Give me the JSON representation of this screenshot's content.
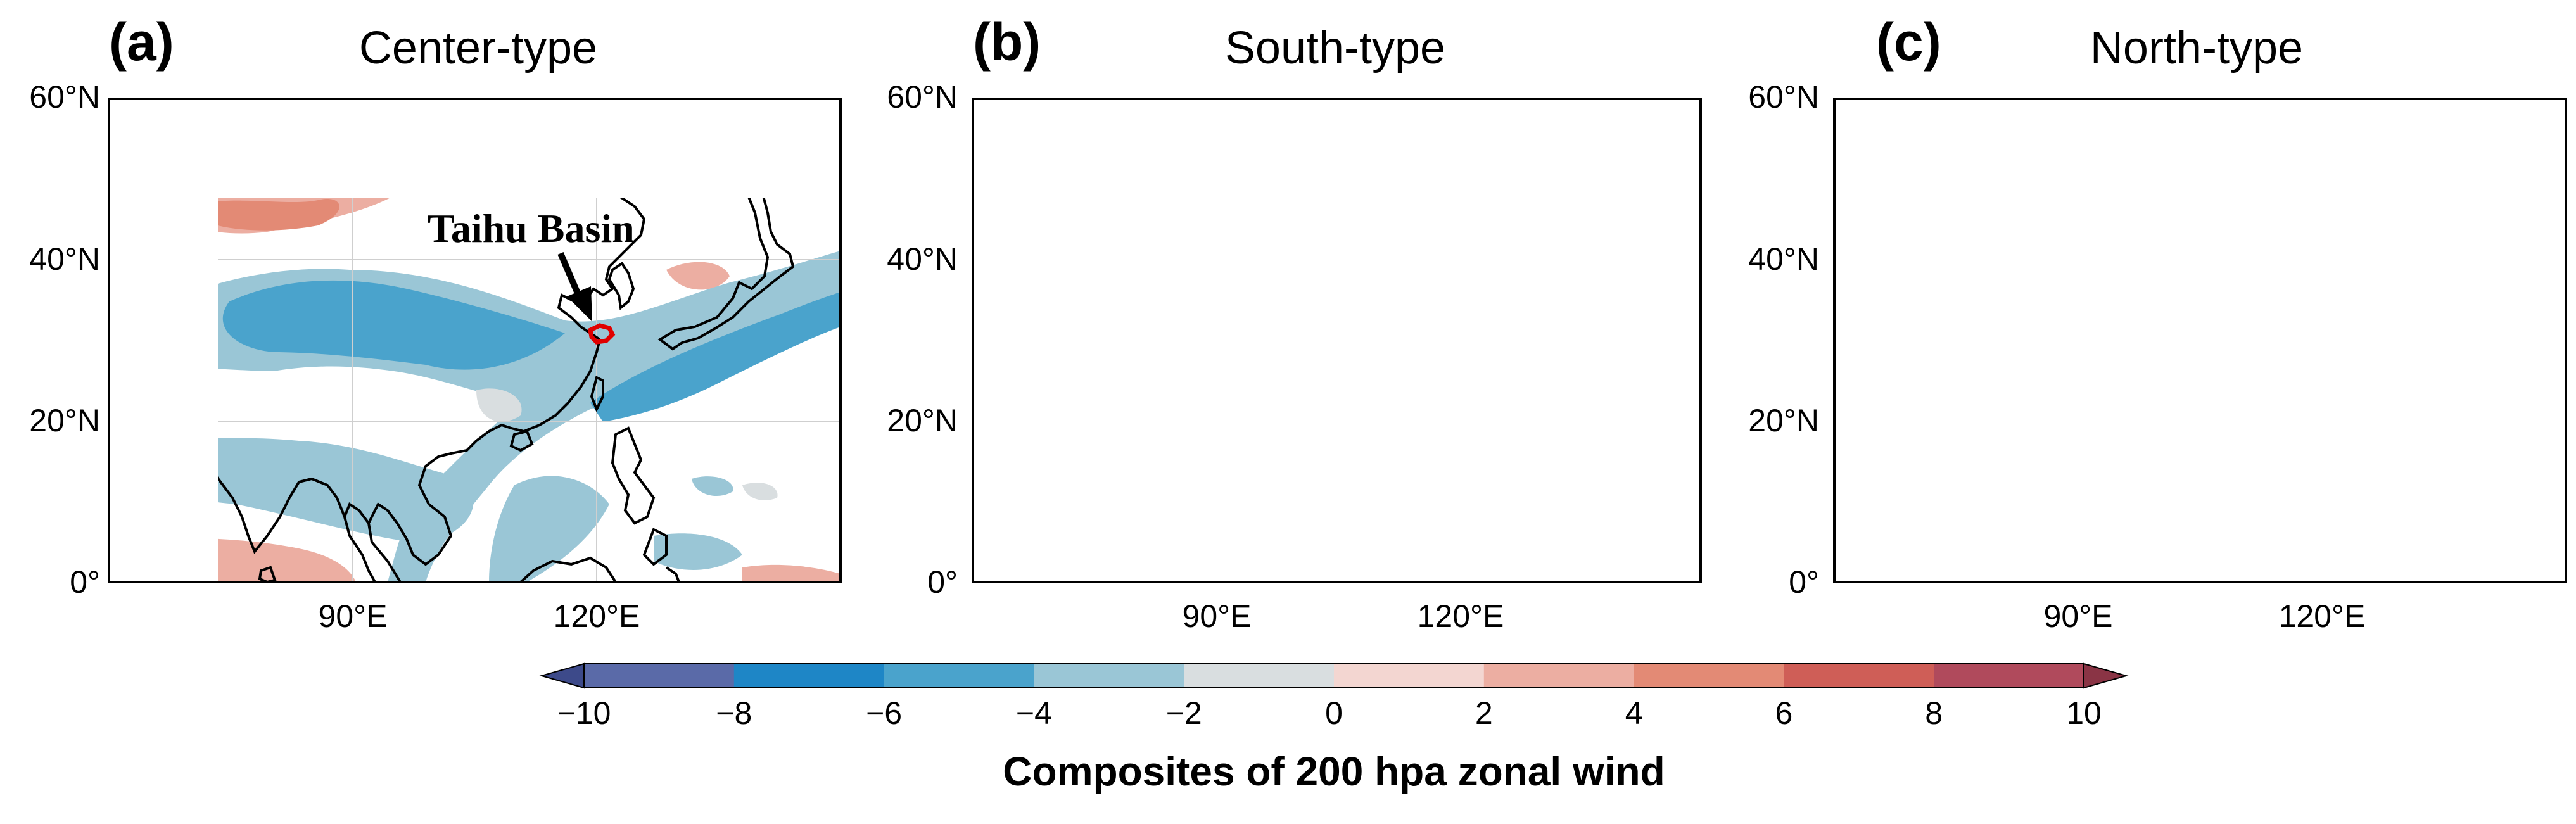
{
  "panels": [
    {
      "id": "a",
      "label": "(a)",
      "title": "Center-type"
    },
    {
      "id": "b",
      "label": "(b)",
      "title": "South-type"
    },
    {
      "id": "c",
      "label": "(c)",
      "title": "North-type"
    }
  ],
  "axes": {
    "lat_ticks": [
      "60°N",
      "40°N",
      "20°N",
      "0°"
    ],
    "lon_ticks": [
      "90°E",
      "120°E"
    ]
  },
  "annotation": {
    "text": "Taihu Basin"
  },
  "colorbar": {
    "title": "Composites of 200 hpa zonal wind",
    "tick_labels": [
      "−10",
      "−8",
      "−6",
      "−4",
      "−2",
      "0",
      "2",
      "4",
      "6",
      "8",
      "10"
    ],
    "levels": [
      -10,
      -8,
      -6,
      -4,
      -2,
      0,
      2,
      4,
      6,
      8,
      10
    ],
    "colors": [
      "#5a6aa8",
      "#1e86c6",
      "#4aa3cc",
      "#9ac6d6",
      "#d9dee0",
      "#f3d6d1",
      "#ecaea2",
      "#e38a75",
      "#cf5e57",
      "#b04a5c"
    ],
    "extend_low_color": "#3d4a8a",
    "extend_high_color": "#8a3445"
  },
  "map_data": {
    "extent": {
      "lon_min": 60,
      "lon_max": 150,
      "lat_min": 0,
      "lat_max": 60
    },
    "outline_color": "#000000",
    "basin_color": "#e00000",
    "grid_color": "#cccccc"
  }
}
